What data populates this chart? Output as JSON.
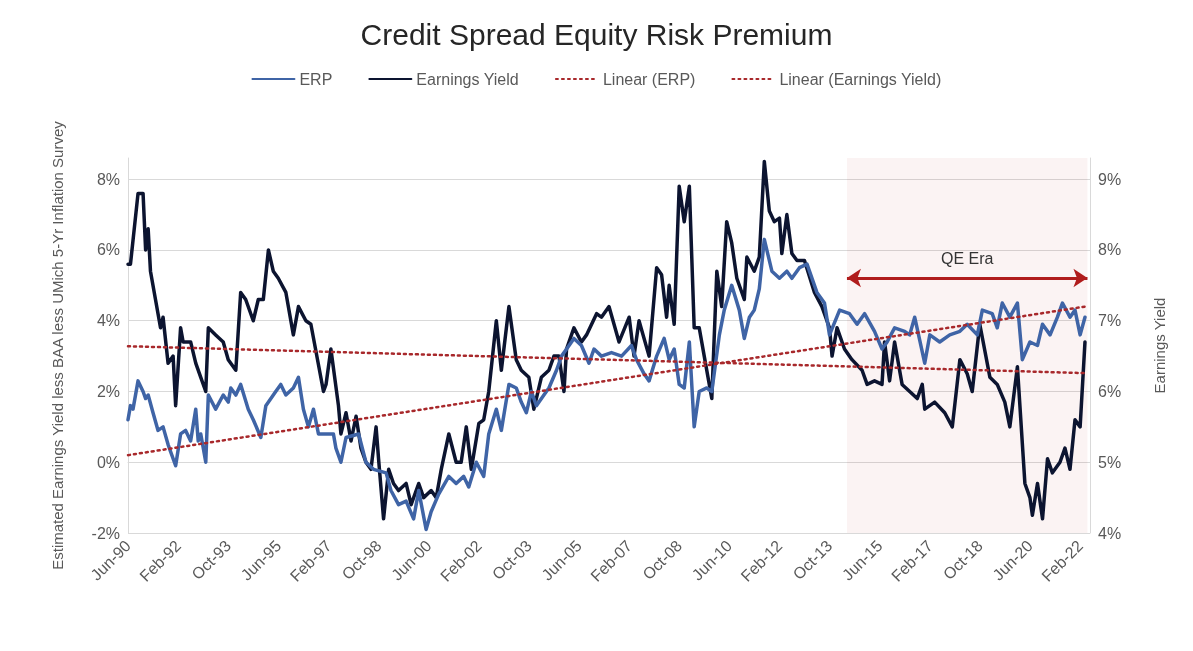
{
  "chart_data": {
    "type": "line",
    "title": "Credit Spread Equity Risk Premium",
    "ylabel": "Estimated Earnings Yield less BAA less UMich 5-Yr Inflation Survey",
    "y2label": "Earnings Yield",
    "xlim": [
      "1990-06",
      "2022-06"
    ],
    "xticks": [
      {
        "value": "1990-06",
        "label": "Jun-90"
      },
      {
        "value": "1992-02",
        "label": "Feb-92"
      },
      {
        "value": "1993-10",
        "label": "Oct-93"
      },
      {
        "value": "1995-06",
        "label": "Jun-95"
      },
      {
        "value": "1997-02",
        "label": "Feb-97"
      },
      {
        "value": "1998-10",
        "label": "Oct-98"
      },
      {
        "value": "2000-06",
        "label": "Jun-00"
      },
      {
        "value": "2002-02",
        "label": "Feb-02"
      },
      {
        "value": "2003-10",
        "label": "Oct-03"
      },
      {
        "value": "2005-06",
        "label": "Jun-05"
      },
      {
        "value": "2007-02",
        "label": "Feb-07"
      },
      {
        "value": "2008-10",
        "label": "Oct-08"
      },
      {
        "value": "2010-06",
        "label": "Jun-10"
      },
      {
        "value": "2012-02",
        "label": "Feb-12"
      },
      {
        "value": "2013-10",
        "label": "Oct-13"
      },
      {
        "value": "2015-06",
        "label": "Jun-15"
      },
      {
        "value": "2017-02",
        "label": "Feb-17"
      },
      {
        "value": "2018-10",
        "label": "Oct-18"
      },
      {
        "value": "2020-06",
        "label": "Jun-20"
      },
      {
        "value": "2022-02",
        "label": "Feb-22"
      }
    ],
    "ylim": [
      -2,
      8.6
    ],
    "yticks": [
      {
        "value": -2,
        "label": "-2%"
      },
      {
        "value": 0,
        "label": "0%"
      },
      {
        "value": 2,
        "label": "2%"
      },
      {
        "value": 4,
        "label": "4%"
      },
      {
        "value": 6,
        "label": "6%"
      },
      {
        "value": 8,
        "label": "8%"
      }
    ],
    "y2lim": [
      4,
      9.3
    ],
    "y2ticks": [
      {
        "value": 4,
        "label": "4%"
      },
      {
        "value": 5,
        "label": "5%"
      },
      {
        "value": 6,
        "label": "6%"
      },
      {
        "value": 7,
        "label": "7%"
      },
      {
        "value": 8,
        "label": "8%"
      },
      {
        "value": 9,
        "label": "9%"
      }
    ],
    "grid": "y",
    "legend": "top",
    "marker": "none",
    "bands": [
      {
        "axis": "x",
        "from": "2014-05",
        "to": "2022-05",
        "label": "QE Era",
        "color": "#b01c1c"
      }
    ],
    "series": [
      {
        "name": "ERP",
        "color": "#3f64a6",
        "line_style": "solid",
        "x": [
          "1990-06",
          "1990-07",
          "1990-08",
          "1990-10",
          "1990-12",
          "1991-01",
          "1991-02",
          "1991-04",
          "1991-06",
          "1991-08",
          "1991-10",
          "1992-01",
          "1992-03",
          "1992-05",
          "1992-07",
          "1992-09",
          "1992-10",
          "1992-11",
          "1993-01",
          "1993-02",
          "1993-05",
          "1993-08",
          "1993-10",
          "1993-11",
          "1994-01",
          "1994-03",
          "1994-06",
          "1994-08",
          "1994-11",
          "1995-01",
          "1995-05",
          "1995-07",
          "1995-09",
          "1995-12",
          "1996-02",
          "1996-04",
          "1996-06",
          "1996-08",
          "1996-10",
          "1997-01",
          "1997-04",
          "1997-05",
          "1997-07",
          "1997-09",
          "1998-02",
          "1998-05",
          "1998-08",
          "1999-01",
          "1999-03",
          "1999-06",
          "1999-09",
          "1999-12",
          "2000-02",
          "2000-05",
          "2000-07",
          "2000-10",
          "2001-02",
          "2001-05",
          "2001-08",
          "2001-10",
          "2002-01",
          "2002-04",
          "2002-06",
          "2002-09",
          "2002-11",
          "2003-02",
          "2003-05",
          "2003-07",
          "2003-09",
          "2003-11",
          "2004-01",
          "2004-04",
          "2004-06",
          "2004-09",
          "2004-11",
          "2005-02",
          "2005-04",
          "2005-07",
          "2005-10",
          "2005-12",
          "2006-03",
          "2006-07",
          "2006-11",
          "2007-03",
          "2007-05",
          "2007-08",
          "2007-10",
          "2008-01",
          "2008-04",
          "2008-06",
          "2008-08",
          "2008-10",
          "2008-12",
          "2009-02",
          "2009-04",
          "2009-06",
          "2009-09",
          "2009-11",
          "2010-02",
          "2010-04",
          "2010-07",
          "2010-10",
          "2010-12",
          "2011-02",
          "2011-04",
          "2011-06",
          "2011-08",
          "2011-11",
          "2012-02",
          "2012-05",
          "2012-07",
          "2012-10",
          "2013-01",
          "2013-05",
          "2013-08",
          "2013-10",
          "2014-02",
          "2014-06",
          "2014-09",
          "2014-12",
          "2015-04",
          "2015-07",
          "2015-09",
          "2015-12",
          "2016-04",
          "2016-06",
          "2016-08",
          "2016-12",
          "2017-02",
          "2017-06",
          "2017-10",
          "2018-02",
          "2018-05",
          "2018-09",
          "2018-11",
          "2019-03",
          "2019-05",
          "2019-07",
          "2019-10",
          "2020-01",
          "2020-03",
          "2020-06",
          "2020-09",
          "2020-11",
          "2021-02",
          "2021-05",
          "2021-07",
          "2021-10",
          "2021-12",
          "2022-02",
          "2022-04"
        ],
        "values": [
          1.2,
          1.6,
          1.5,
          2.3,
          2.0,
          1.8,
          1.9,
          1.4,
          0.9,
          1.0,
          0.5,
          -0.1,
          0.8,
          0.9,
          0.6,
          1.5,
          0.6,
          0.8,
          0.0,
          1.9,
          1.5,
          1.9,
          1.7,
          2.1,
          1.9,
          2.2,
          1.5,
          1.2,
          0.7,
          1.6,
          2.0,
          2.2,
          1.9,
          2.1,
          2.4,
          1.5,
          1.0,
          1.5,
          0.8,
          0.8,
          0.8,
          0.4,
          0.0,
          0.7,
          0.8,
          0.0,
          -0.2,
          -0.3,
          -0.8,
          -1.2,
          -1.1,
          -1.6,
          -0.8,
          -1.9,
          -1.4,
          -0.9,
          -0.4,
          -0.6,
          -0.4,
          -0.7,
          0.0,
          -0.4,
          0.8,
          1.5,
          0.9,
          2.2,
          2.1,
          1.7,
          1.4,
          2.0,
          1.6,
          1.9,
          2.1,
          2.6,
          3.0,
          3.3,
          3.5,
          3.3,
          2.8,
          3.2,
          3.0,
          3.1,
          3.0,
          3.3,
          2.9,
          2.5,
          2.3,
          3.0,
          3.5,
          2.9,
          3.2,
          2.2,
          2.1,
          3.4,
          1.0,
          2.0,
          2.1,
          2.0,
          3.6,
          4.3,
          5.0,
          4.3,
          3.5,
          4.1,
          4.3,
          4.9,
          6.3,
          5.4,
          5.2,
          5.4,
          5.2,
          5.5,
          5.6,
          4.8,
          4.5,
          3.6,
          4.3,
          4.2,
          3.9,
          4.2,
          3.7,
          3.2,
          3.4,
          3.8,
          3.7,
          3.6,
          4.1,
          2.8,
          3.6,
          3.4,
          3.6,
          3.7,
          3.9,
          3.6,
          4.3,
          4.2,
          3.8,
          4.5,
          4.1,
          4.5,
          2.9,
          3.4,
          3.3,
          3.9,
          3.6,
          4.1,
          4.5,
          4.1,
          4.3,
          3.6,
          4.1
        ]
      },
      {
        "name": "Earnings Yield",
        "color": "#0c1430",
        "line_style": "solid",
        "axis": "y2",
        "x": [
          "1990-06",
          "1990-07",
          "1990-10",
          "1990-12",
          "1991-01",
          "1991-02",
          "1991-03",
          "1991-05",
          "1991-07",
          "1991-08",
          "1991-10",
          "1991-12",
          "1992-01",
          "1992-03",
          "1992-04",
          "1992-07",
          "1992-09",
          "1992-11",
          "1993-01",
          "1993-02",
          "1993-05",
          "1993-08",
          "1993-10",
          "1994-01",
          "1994-03",
          "1994-05",
          "1994-08",
          "1994-10",
          "1994-12",
          "1995-02",
          "1995-04",
          "1995-06",
          "1995-09",
          "1995-12",
          "1996-02",
          "1996-05",
          "1996-07",
          "1996-12",
          "1997-01",
          "1997-03",
          "1997-06",
          "1997-07",
          "1997-09",
          "1997-11",
          "1998-01",
          "1998-03",
          "1998-05",
          "1998-07",
          "1998-09",
          "1998-10",
          "1998-12",
          "1999-02",
          "1999-04",
          "1999-06",
          "1999-09",
          "1999-11",
          "2000-02",
          "2000-04",
          "2000-07",
          "2000-09",
          "2000-11",
          "2001-02",
          "2001-05",
          "2001-07",
          "2001-09",
          "2001-11",
          "2002-02",
          "2002-04",
          "2002-06",
          "2002-09",
          "2002-11",
          "2003-02",
          "2003-05",
          "2003-07",
          "2003-10",
          "2003-12",
          "2004-03",
          "2004-06",
          "2004-08",
          "2004-10",
          "2004-12",
          "2005-01",
          "2005-04",
          "2005-07",
          "2005-09",
          "2006-01",
          "2006-03",
          "2006-06",
          "2006-10",
          "2007-02",
          "2007-04",
          "2007-06",
          "2007-10",
          "2008-01",
          "2008-03",
          "2008-05",
          "2008-06",
          "2008-08",
          "2008-10",
          "2008-12",
          "2009-02",
          "2009-04",
          "2009-06",
          "2009-08",
          "2009-11",
          "2010-01",
          "2010-03",
          "2010-05",
          "2010-07",
          "2010-09",
          "2010-12",
          "2011-01",
          "2011-04",
          "2011-06",
          "2011-08",
          "2011-10",
          "2011-12",
          "2012-02",
          "2012-03",
          "2012-05",
          "2012-07",
          "2012-09",
          "2012-12",
          "2013-04",
          "2013-07",
          "2013-10",
          "2013-11",
          "2014-01",
          "2014-04",
          "2014-07",
          "2014-11",
          "2015-01",
          "2015-04",
          "2015-07",
          "2015-08",
          "2015-10",
          "2015-12",
          "2016-03",
          "2016-06",
          "2016-09",
          "2016-11",
          "2016-12",
          "2017-04",
          "2017-08",
          "2017-11",
          "2018-02",
          "2018-05",
          "2018-07",
          "2018-10",
          "2019-02",
          "2019-05",
          "2019-08",
          "2019-10",
          "2020-01",
          "2020-04",
          "2020-06",
          "2020-07",
          "2020-09",
          "2020-11",
          "2021-01",
          "2021-03",
          "2021-06",
          "2021-08",
          "2021-10",
          "2021-12",
          "2022-02",
          "2022-04"
        ],
        "values": [
          7.8,
          7.8,
          8.8,
          8.8,
          8.0,
          8.3,
          7.7,
          7.3,
          6.9,
          7.05,
          6.4,
          6.5,
          5.8,
          6.9,
          6.7,
          6.7,
          6.4,
          6.2,
          6.0,
          6.9,
          6.8,
          6.7,
          6.45,
          6.3,
          7.4,
          7.3,
          7.0,
          7.3,
          7.3,
          8.0,
          7.7,
          7.6,
          7.4,
          6.8,
          7.2,
          7.0,
          6.95,
          6.0,
          6.1,
          6.6,
          5.8,
          5.4,
          5.7,
          5.3,
          5.65,
          5.2,
          5.0,
          4.9,
          5.5,
          5.05,
          4.2,
          4.9,
          4.7,
          4.6,
          4.7,
          4.4,
          4.7,
          4.5,
          4.6,
          4.5,
          4.9,
          5.4,
          5.0,
          5.0,
          5.5,
          4.9,
          5.55,
          5.6,
          6.0,
          7.0,
          6.3,
          7.2,
          6.45,
          6.3,
          6.2,
          5.75,
          6.2,
          6.3,
          6.5,
          6.5,
          6.0,
          6.6,
          6.9,
          6.7,
          6.8,
          7.1,
          7.05,
          7.2,
          6.7,
          7.05,
          6.5,
          7.0,
          6.5,
          7.75,
          7.65,
          7.05,
          7.5,
          6.95,
          8.9,
          8.4,
          8.9,
          6.9,
          6.9,
          6.5,
          5.9,
          7.7,
          7.2,
          8.4,
          8.1,
          7.6,
          7.3,
          7.9,
          7.7,
          7.9,
          9.25,
          8.55,
          8.4,
          8.45,
          7.95,
          8.5,
          7.95,
          7.85,
          7.85,
          7.4,
          7.2,
          6.9,
          6.5,
          6.9,
          6.6,
          6.45,
          6.3,
          6.1,
          6.15,
          6.1,
          6.7,
          6.15,
          6.7,
          6.1,
          6.0,
          5.9,
          6.1,
          5.75,
          5.85,
          5.7,
          5.5,
          6.45,
          6.25,
          6.0,
          6.95,
          6.2,
          6.1,
          5.85,
          5.5,
          6.35,
          4.7,
          4.5,
          4.25,
          4.7,
          4.2,
          5.05,
          4.85,
          5.0,
          5.2,
          4.9,
          5.6,
          5.5,
          6.7
        ]
      },
      {
        "name": "Linear (ERP)",
        "color": "#a8282b",
        "line_style": "dotted",
        "x": [
          "1990-06",
          "2022-04"
        ],
        "values": [
          0.2,
          4.4
        ]
      },
      {
        "name": "Linear (Earnings Yield)",
        "color": "#a8282b",
        "line_style": "dotted",
        "axis": "y2",
        "x": [
          "1990-06",
          "2022-04"
        ],
        "values": [
          6.64,
          6.26
        ]
      }
    ]
  }
}
